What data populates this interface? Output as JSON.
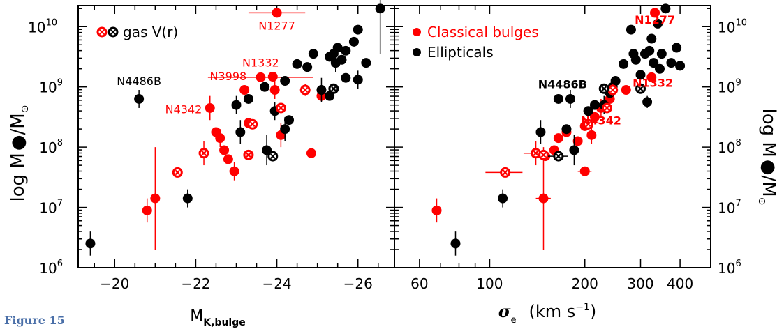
{
  "figure_caption": "Figure 15",
  "colors": {
    "classical": "#ff0000",
    "elliptical": "#000000",
    "axes": "#000000"
  },
  "left_yaxis": {
    "label_prefix": "log M",
    "label_sep": "/M",
    "sun": "⊙"
  },
  "right_yaxis": {
    "label_prefix": "log M",
    "label_sep": "/M",
    "sun": "⊙"
  },
  "legend_left": {
    "text": "gas V(r)"
  },
  "legend_right": [
    {
      "label": "Classical bulges",
      "color": "#ff0000"
    },
    {
      "label": "Ellipticals",
      "color": "#000000"
    }
  ],
  "chart_data": [
    {
      "type": "scatter",
      "xlabel": "M",
      "xlabel_sub": "K,bulge",
      "ylabel": "log M●/M⊙",
      "xlim": [
        -19.1,
        -26.9
      ],
      "ylim": [
        6,
        10.35
      ],
      "yscale": "log10",
      "xticks": [
        -20,
        -22,
        -24,
        -26
      ],
      "xtick_labels": [
        "−20",
        "−22",
        "−24",
        "−26"
      ],
      "yticks": [
        6,
        7,
        8,
        9,
        10
      ],
      "ytick_labels": [
        "10",
        "10",
        "10",
        "10",
        "10"
      ],
      "ytick_exps": [
        "6",
        "7",
        "8",
        "9",
        "10"
      ],
      "annotations": [
        {
          "text": "N1277",
          "x": -24.0,
          "y": 9.95,
          "color": "#ff0000"
        },
        {
          "text": "N1332",
          "x": -23.6,
          "y": 9.34,
          "color": "#ff0000"
        },
        {
          "text": "N3998",
          "x": -22.8,
          "y": 9.11,
          "color": "#ff0000"
        },
        {
          "text": "N4342",
          "x": -21.7,
          "y": 8.56,
          "color": "#ff0000"
        },
        {
          "text": "N4486B",
          "x": -20.6,
          "y": 9.03,
          "color": "#000000"
        }
      ],
      "series": [
        {
          "name": "Classical bulges",
          "color": "#ff0000",
          "points": [
            {
              "x": -24.0,
              "y": 10.23,
              "xerr": 0.7,
              "yerr": 0
            },
            {
              "x": -23.9,
              "y": 9.17,
              "xerr": 0,
              "yerr": 0
            },
            {
              "x": -23.2,
              "y": 8.95,
              "xerr": 0,
              "yerr": 0
            },
            {
              "x": -23.95,
              "y": 8.95,
              "xerr": 0,
              "yerr": 0.15
            },
            {
              "x": -23.6,
              "y": 9.16,
              "xerr": 1.3,
              "yerr": 0
            },
            {
              "x": -22.35,
              "y": 8.65,
              "xerr": 0,
              "yerr": 0.2
            },
            {
              "x": -22.5,
              "y": 8.25,
              "xerr": 0,
              "yerr": 0
            },
            {
              "x": -22.6,
              "y": 8.15,
              "xerr": 0,
              "yerr": 0.15
            },
            {
              "x": -22.7,
              "y": 7.95,
              "xerr": 0,
              "yerr": 0
            },
            {
              "x": -22.8,
              "y": 7.8,
              "xerr": 0,
              "yerr": 0
            },
            {
              "x": -22.95,
              "y": 7.6,
              "xerr": 0,
              "yerr": 0.15
            },
            {
              "x": -23.3,
              "y": 8.4,
              "xerr": 0,
              "yerr": 0
            },
            {
              "x": -24.1,
              "y": 8.2,
              "xerr": 0,
              "yerr": 0.2
            },
            {
              "x": -24.85,
              "y": 7.9,
              "xerr": 0,
              "yerr": 0
            },
            {
              "x": -25.1,
              "y": 8.85,
              "xerr": 0,
              "yerr": 0
            },
            {
              "x": -20.8,
              "y": 6.95,
              "xerr": 0,
              "yerr": 0.2
            },
            {
              "x": -21.0,
              "y": 7.15,
              "xerr": 0,
              "yerr": 0.85
            }
          ]
        },
        {
          "name": "Ellipticals",
          "color": "#000000",
          "points": [
            {
              "x": -20.6,
              "y": 8.8,
              "xerr": 0,
              "yerr": 0.15
            },
            {
              "x": -21.8,
              "y": 7.15,
              "xerr": 0,
              "yerr": 0.15
            },
            {
              "x": -19.4,
              "y": 6.4,
              "xerr": 0,
              "yerr": 0.2
            },
            {
              "x": -23.0,
              "y": 8.7,
              "xerr": 0,
              "yerr": 0.15
            },
            {
              "x": -23.3,
              "y": 8.8,
              "xerr": 0,
              "yerr": 0
            },
            {
              "x": -23.1,
              "y": 8.25,
              "xerr": 0,
              "yerr": 0.2
            },
            {
              "x": -23.7,
              "y": 9.0,
              "xerr": 0,
              "yerr": 0
            },
            {
              "x": -23.95,
              "y": 8.6,
              "xerr": 0,
              "yerr": 0.15
            },
            {
              "x": -23.75,
              "y": 7.95,
              "xerr": 0,
              "yerr": 0.25
            },
            {
              "x": -24.2,
              "y": 9.1,
              "xerr": 0,
              "yerr": 0
            },
            {
              "x": -24.2,
              "y": 8.3,
              "xerr": 0,
              "yerr": 0.2
            },
            {
              "x": -24.3,
              "y": 8.45,
              "xerr": 0,
              "yerr": 0
            },
            {
              "x": -24.5,
              "y": 9.38,
              "xerr": 0,
              "yerr": 0
            },
            {
              "x": -24.75,
              "y": 9.33,
              "xerr": 0,
              "yerr": 0
            },
            {
              "x": -24.9,
              "y": 9.55,
              "xerr": 0,
              "yerr": 0
            },
            {
              "x": -25.1,
              "y": 8.95,
              "xerr": 0,
              "yerr": 0.2
            },
            {
              "x": -25.3,
              "y": 8.85,
              "xerr": 0,
              "yerr": 0
            },
            {
              "x": -25.4,
              "y": 9.55,
              "xerr": 0,
              "yerr": 0
            },
            {
              "x": -25.45,
              "y": 9.4,
              "xerr": 0,
              "yerr": 0.15
            },
            {
              "x": -25.5,
              "y": 9.65,
              "xerr": 0,
              "yerr": 0
            },
            {
              "x": -25.6,
              "y": 9.45,
              "xerr": 0,
              "yerr": 0
            },
            {
              "x": -25.7,
              "y": 9.6,
              "xerr": 0,
              "yerr": 0
            },
            {
              "x": -25.9,
              "y": 9.75,
              "xerr": 0,
              "yerr": 0
            },
            {
              "x": -26.0,
              "y": 9.95,
              "xerr": 0,
              "yerr": 0
            },
            {
              "x": -26.2,
              "y": 9.4,
              "xerr": 0,
              "yerr": 0
            },
            {
              "x": -26.0,
              "y": 9.12,
              "xerr": 0,
              "yerr": 0.15
            },
            {
              "x": -25.3,
              "y": 9.5,
              "xerr": 0,
              "yerr": 0
            },
            {
              "x": -26.55,
              "y": 10.3,
              "xerr": 0,
              "yerr": 0.75
            },
            {
              "x": -25.7,
              "y": 9.15,
              "xerr": 0,
              "yerr": 0
            }
          ]
        },
        {
          "name": "gas V(r) classical",
          "color": "#ff0000",
          "marker": "cross",
          "points": [
            {
              "x": -21.55,
              "y": 7.58,
              "xerr": 0,
              "yerr": 0
            },
            {
              "x": -22.2,
              "y": 7.9,
              "xerr": 0,
              "yerr": 0.2
            },
            {
              "x": -23.3,
              "y": 7.87,
              "xerr": 0,
              "yerr": 0
            },
            {
              "x": -23.4,
              "y": 8.38,
              "xerr": 0,
              "yerr": 0
            },
            {
              "x": -24.1,
              "y": 8.65,
              "xerr": 0,
              "yerr": 0
            },
            {
              "x": -24.7,
              "y": 8.95,
              "xerr": 0,
              "yerr": 0.1
            }
          ]
        },
        {
          "name": "gas V(r) elliptical",
          "color": "#000000",
          "marker": "cross",
          "points": [
            {
              "x": -23.9,
              "y": 7.85,
              "xerr": 0,
              "yerr": 0
            },
            {
              "x": -25.4,
              "y": 8.97,
              "xerr": 0,
              "yerr": 0
            }
          ]
        }
      ]
    },
    {
      "type": "scatter",
      "xlabel": "σ",
      "xlabel_sub": "e",
      "xlabel_unit": "(km s",
      "xlabel_unit_exp": "−1",
      "xlabel_unit_close": ")",
      "ylabel": "log M●/M⊙",
      "xscale": "log10",
      "xlim": [
        50,
        500
      ],
      "ylim": [
        6,
        10.35
      ],
      "yscale": "log10",
      "xticks": [
        60,
        100,
        200,
        300,
        400
      ],
      "xtick_labels": [
        "60",
        "100",
        "200",
        "300",
        "400"
      ],
      "yticks": [
        6,
        7,
        8,
        9,
        10
      ],
      "ytick_labels": [
        "10",
        "10",
        "10",
        "10",
        "10"
      ],
      "ytick_exps": [
        "6",
        "7",
        "8",
        "9",
        "10"
      ],
      "annotations": [
        {
          "text": "N1277",
          "x": 333,
          "y": 10.05,
          "color": "#ff0000"
        },
        {
          "text": "N1332",
          "x": 328,
          "y": 9.0,
          "color": "#ff0000"
        },
        {
          "text": "N4342",
          "x": 225,
          "y": 8.38,
          "color": "#ff0000"
        },
        {
          "text": "N4486B",
          "x": 170,
          "y": 8.98,
          "color": "#000000"
        }
      ],
      "series": [
        {
          "name": "Classical bulges",
          "color": "#ff0000",
          "points": [
            {
              "x": 333,
              "y": 10.23,
              "xerr": 0,
              "yerr": 0
            },
            {
              "x": 325,
              "y": 9.16,
              "xerr": 0,
              "yerr": 0
            },
            {
              "x": 270,
              "y": 8.95,
              "xerr": 0,
              "yerr": 0
            },
            {
              "x": 240,
              "y": 8.8,
              "xerr": 0,
              "yerr": 0
            },
            {
              "x": 225,
              "y": 8.65,
              "xerr": 0,
              "yerr": 0.15
            },
            {
              "x": 215,
              "y": 8.5,
              "xerr": 0,
              "yerr": 0
            },
            {
              "x": 200,
              "y": 8.35,
              "xerr": 0,
              "yerr": 0
            },
            {
              "x": 210,
              "y": 8.2,
              "xerr": 0,
              "yerr": 0.15
            },
            {
              "x": 190,
              "y": 8.1,
              "xerr": 0,
              "yerr": 0
            },
            {
              "x": 175,
              "y": 8.25,
              "xerr": 0,
              "yerr": 0
            },
            {
              "x": 165,
              "y": 8.15,
              "xerr": 0,
              "yerr": 0
            },
            {
              "x": 160,
              "y": 7.95,
              "xerr": 0,
              "yerr": 0
            },
            {
              "x": 150,
              "y": 7.85,
              "xerr": 0,
              "yerr": 0
            },
            {
              "x": 200,
              "y": 7.6,
              "xerr": 10,
              "yerr": 0
            },
            {
              "x": 148,
              "y": 7.15,
              "xerr": 8,
              "yerr": 0.85
            },
            {
              "x": 68,
              "y": 6.95,
              "xerr": 0,
              "yerr": 0.2
            }
          ]
        },
        {
          "name": "Ellipticals",
          "color": "#000000",
          "points": [
            {
              "x": 165,
              "y": 8.8,
              "xerr": 0,
              "yerr": 0
            },
            {
              "x": 180,
              "y": 8.8,
              "xerr": 0,
              "yerr": 0.15
            },
            {
              "x": 110,
              "y": 7.15,
              "xerr": 0,
              "yerr": 0.15
            },
            {
              "x": 78,
              "y": 6.4,
              "xerr": 0,
              "yerr": 0.2
            },
            {
              "x": 145,
              "y": 8.25,
              "xerr": 0,
              "yerr": 0.2
            },
            {
              "x": 175,
              "y": 8.3,
              "xerr": 0,
              "yerr": 0
            },
            {
              "x": 185,
              "y": 7.95,
              "xerr": 0,
              "yerr": 0.25
            },
            {
              "x": 205,
              "y": 8.6,
              "xerr": 0,
              "yerr": 0
            },
            {
              "x": 215,
              "y": 8.7,
              "xerr": 0,
              "yerr": 0
            },
            {
              "x": 230,
              "y": 8.7,
              "xerr": 0,
              "yerr": 0.15
            },
            {
              "x": 245,
              "y": 9.0,
              "xerr": 0,
              "yerr": 0
            },
            {
              "x": 240,
              "y": 8.9,
              "xerr": 0,
              "yerr": 0
            },
            {
              "x": 250,
              "y": 9.1,
              "xerr": 0,
              "yerr": 0
            },
            {
              "x": 265,
              "y": 9.38,
              "xerr": 0,
              "yerr": 0
            },
            {
              "x": 280,
              "y": 9.95,
              "xerr": 0,
              "yerr": 0
            },
            {
              "x": 285,
              "y": 9.55,
              "xerr": 0,
              "yerr": 0
            },
            {
              "x": 290,
              "y": 9.45,
              "xerr": 0,
              "yerr": 0
            },
            {
              "x": 300,
              "y": 9.2,
              "xerr": 0,
              "yerr": 0
            },
            {
              "x": 310,
              "y": 9.55,
              "xerr": 0,
              "yerr": 0
            },
            {
              "x": 320,
              "y": 9.6,
              "xerr": 0,
              "yerr": 0
            },
            {
              "x": 330,
              "y": 9.4,
              "xerr": 0,
              "yerr": 0
            },
            {
              "x": 325,
              "y": 9.8,
              "xerr": 0,
              "yerr": 0
            },
            {
              "x": 340,
              "y": 10.05,
              "xerr": 0,
              "yerr": 0
            },
            {
              "x": 345,
              "y": 9.3,
              "xerr": 0,
              "yerr": 0
            },
            {
              "x": 350,
              "y": 9.55,
              "xerr": 0,
              "yerr": 0
            },
            {
              "x": 360,
              "y": 10.3,
              "xerr": 0,
              "yerr": 0
            },
            {
              "x": 375,
              "y": 9.4,
              "xerr": 0,
              "yerr": 0
            },
            {
              "x": 390,
              "y": 9.65,
              "xerr": 0,
              "yerr": 0
            },
            {
              "x": 400,
              "y": 9.35,
              "xerr": 0,
              "yerr": 0
            },
            {
              "x": 315,
              "y": 8.75,
              "xerr": 0,
              "yerr": 0.1
            }
          ]
        },
        {
          "name": "gas V(r) classical",
          "color": "#ff0000",
          "marker": "cross",
          "points": [
            {
              "x": 112,
              "y": 7.58,
              "xerr": 15,
              "yerr": 0
            },
            {
              "x": 140,
              "y": 7.9,
              "xerr": 12,
              "yerr": 0.2
            },
            {
              "x": 148,
              "y": 7.87,
              "xerr": 0,
              "yerr": 0
            },
            {
              "x": 205,
              "y": 8.38,
              "xerr": 0,
              "yerr": 0
            },
            {
              "x": 235,
              "y": 8.65,
              "xerr": 0,
              "yerr": 0
            },
            {
              "x": 245,
              "y": 8.95,
              "xerr": 0,
              "yerr": 0.1
            }
          ]
        },
        {
          "name": "gas V(r) elliptical",
          "color": "#000000",
          "marker": "cross",
          "points": [
            {
              "x": 165,
              "y": 7.85,
              "xerr": 12,
              "yerr": 0
            },
            {
              "x": 230,
              "y": 8.97,
              "xerr": 0,
              "yerr": 0
            },
            {
              "x": 300,
              "y": 8.97,
              "xerr": 0,
              "yerr": 0
            }
          ]
        }
      ]
    }
  ]
}
